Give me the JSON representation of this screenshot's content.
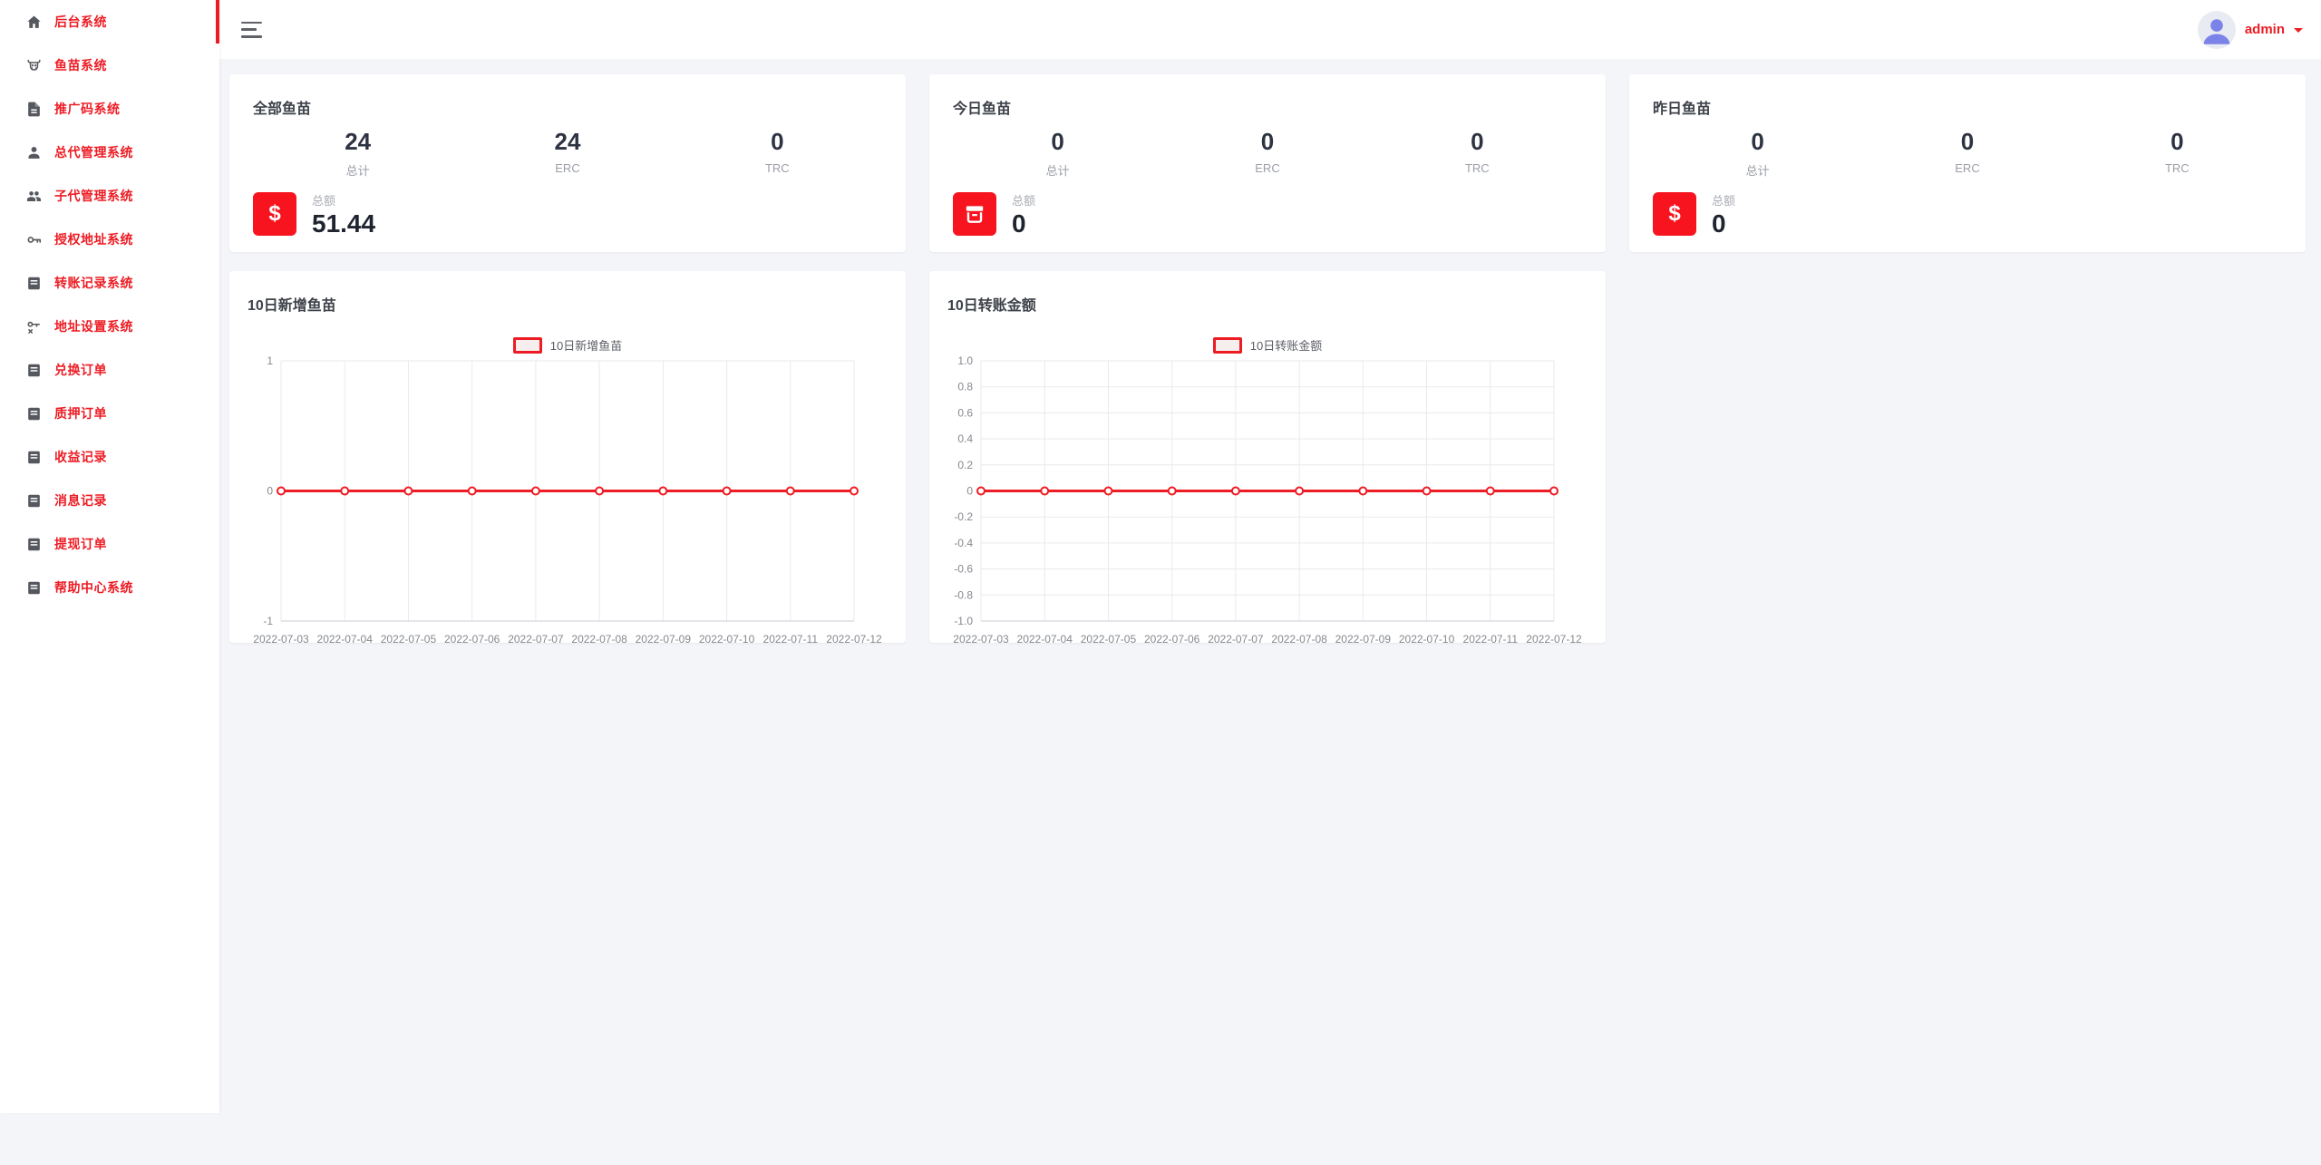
{
  "colors": {
    "accent": "#ed1c24",
    "icon_bg": "#f7141f",
    "chart_line": "#ee1c24"
  },
  "topbar": {
    "user_label": "admin"
  },
  "sidebar": {
    "items": [
      {
        "label": "后台系统",
        "icon": "home-icon",
        "active": true
      },
      {
        "label": "鱼苗系统",
        "icon": "cow-icon",
        "active": false
      },
      {
        "label": "推广码系统",
        "icon": "file-document-icon",
        "active": false
      },
      {
        "label": "总代管理系统",
        "icon": "account-icon",
        "active": false
      },
      {
        "label": "子代管理系统",
        "icon": "account-group-icon",
        "active": false
      },
      {
        "label": "授权地址系统",
        "icon": "key-icon",
        "active": false
      },
      {
        "label": "转账记录系统",
        "icon": "list-box-icon",
        "active": false
      },
      {
        "label": "地址设置系统",
        "icon": "key-remove-icon",
        "active": false
      },
      {
        "label": "兑换订单",
        "icon": "list-box-icon",
        "active": false
      },
      {
        "label": "质押订单",
        "icon": "list-box-icon",
        "active": false
      },
      {
        "label": "收益记录",
        "icon": "list-box-icon",
        "active": false
      },
      {
        "label": "消息记录",
        "icon": "list-box-icon",
        "active": false
      },
      {
        "label": "提现订单",
        "icon": "list-box-icon",
        "active": false
      },
      {
        "label": "帮助中心系统",
        "icon": "list-box-icon",
        "active": false
      }
    ]
  },
  "stat_cards": [
    {
      "title": "全部鱼苗",
      "stats": [
        {
          "value": "24",
          "label": "总计"
        },
        {
          "value": "24",
          "label": "ERC"
        },
        {
          "value": "0",
          "label": "TRC"
        }
      ],
      "total_label": "总额",
      "total_value": "51.44",
      "icon": "dollar-icon"
    },
    {
      "title": "今日鱼苗",
      "stats": [
        {
          "value": "0",
          "label": "总计"
        },
        {
          "value": "0",
          "label": "ERC"
        },
        {
          "value": "0",
          "label": "TRC"
        }
      ],
      "total_label": "总额",
      "total_value": "0",
      "icon": "archive-icon"
    },
    {
      "title": "昨日鱼苗",
      "stats": [
        {
          "value": "0",
          "label": "总计"
        },
        {
          "value": "0",
          "label": "ERC"
        },
        {
          "value": "0",
          "label": "TRC"
        }
      ],
      "total_label": "总额",
      "total_value": "0",
      "icon": "dollar-icon"
    }
  ],
  "chart_data": [
    {
      "type": "line",
      "title": "10日新增鱼苗",
      "legend": "10日新增鱼苗",
      "x": [
        "2022-07-03",
        "2022-07-04",
        "2022-07-05",
        "2022-07-06",
        "2022-07-07",
        "2022-07-08",
        "2022-07-09",
        "2022-07-10",
        "2022-07-11",
        "2022-07-12"
      ],
      "values": [
        0,
        0,
        0,
        0,
        0,
        0,
        0,
        0,
        0,
        0
      ],
      "ylim": [
        -1,
        1
      ],
      "yticks": [
        {
          "v": 1,
          "t": "1"
        },
        {
          "v": 0,
          "t": "0"
        },
        {
          "v": -1,
          "t": "-1"
        }
      ],
      "grid": true,
      "legend_position": "top-center",
      "line_color": "#ee1c24"
    },
    {
      "type": "line",
      "title": "10日转账金额",
      "legend": "10日转账金额",
      "x": [
        "2022-07-03",
        "2022-07-04",
        "2022-07-05",
        "2022-07-06",
        "2022-07-07",
        "2022-07-08",
        "2022-07-09",
        "2022-07-10",
        "2022-07-11",
        "2022-07-12"
      ],
      "values": [
        0,
        0,
        0,
        0,
        0,
        0,
        0,
        0,
        0,
        0
      ],
      "ylim": [
        -1,
        1
      ],
      "yticks": [
        {
          "v": 1,
          "t": "1.0"
        },
        {
          "v": 0.8,
          "t": "0.8"
        },
        {
          "v": 0.6,
          "t": "0.6"
        },
        {
          "v": 0.4,
          "t": "0.4"
        },
        {
          "v": 0.2,
          "t": "0.2"
        },
        {
          "v": 0,
          "t": "0"
        },
        {
          "v": -0.2,
          "t": "-0.2"
        },
        {
          "v": -0.4,
          "t": "-0.4"
        },
        {
          "v": -0.6,
          "t": "-0.6"
        },
        {
          "v": -0.8,
          "t": "-0.8"
        },
        {
          "v": -1,
          "t": "-1.0"
        }
      ],
      "grid": true,
      "legend_position": "top-center",
      "line_color": "#ee1c24"
    }
  ]
}
